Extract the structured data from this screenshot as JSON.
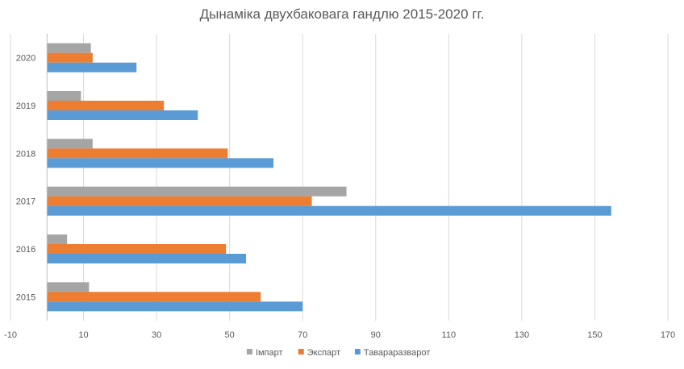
{
  "chart_data": {
    "type": "bar",
    "orientation": "horizontal",
    "title": "Дынаміка двухбаковага гандлю 2015-2020 гг.",
    "categories": [
      "2015",
      "2016",
      "2017",
      "2018",
      "2019",
      "2020"
    ],
    "series": [
      {
        "name": "Імпарт",
        "color": "#a5a5a5",
        "values": [
          11.5,
          5.5,
          82,
          12.5,
          9.3,
          12
        ]
      },
      {
        "name": "Экспарт",
        "color": "#ed7d31",
        "values": [
          58.5,
          49,
          72.5,
          49.5,
          32,
          12.5
        ]
      },
      {
        "name": "Тавараразварот",
        "color": "#5b9bd5",
        "values": [
          70,
          54.5,
          154.5,
          62,
          41.3,
          24.5
        ]
      }
    ],
    "xlim": [
      -10,
      170
    ],
    "xticks": [
      "-10",
      "10",
      "30",
      "50",
      "70",
      "90",
      "110",
      "130",
      "150",
      "170"
    ],
    "grid": true,
    "legend_position": "bottom"
  }
}
